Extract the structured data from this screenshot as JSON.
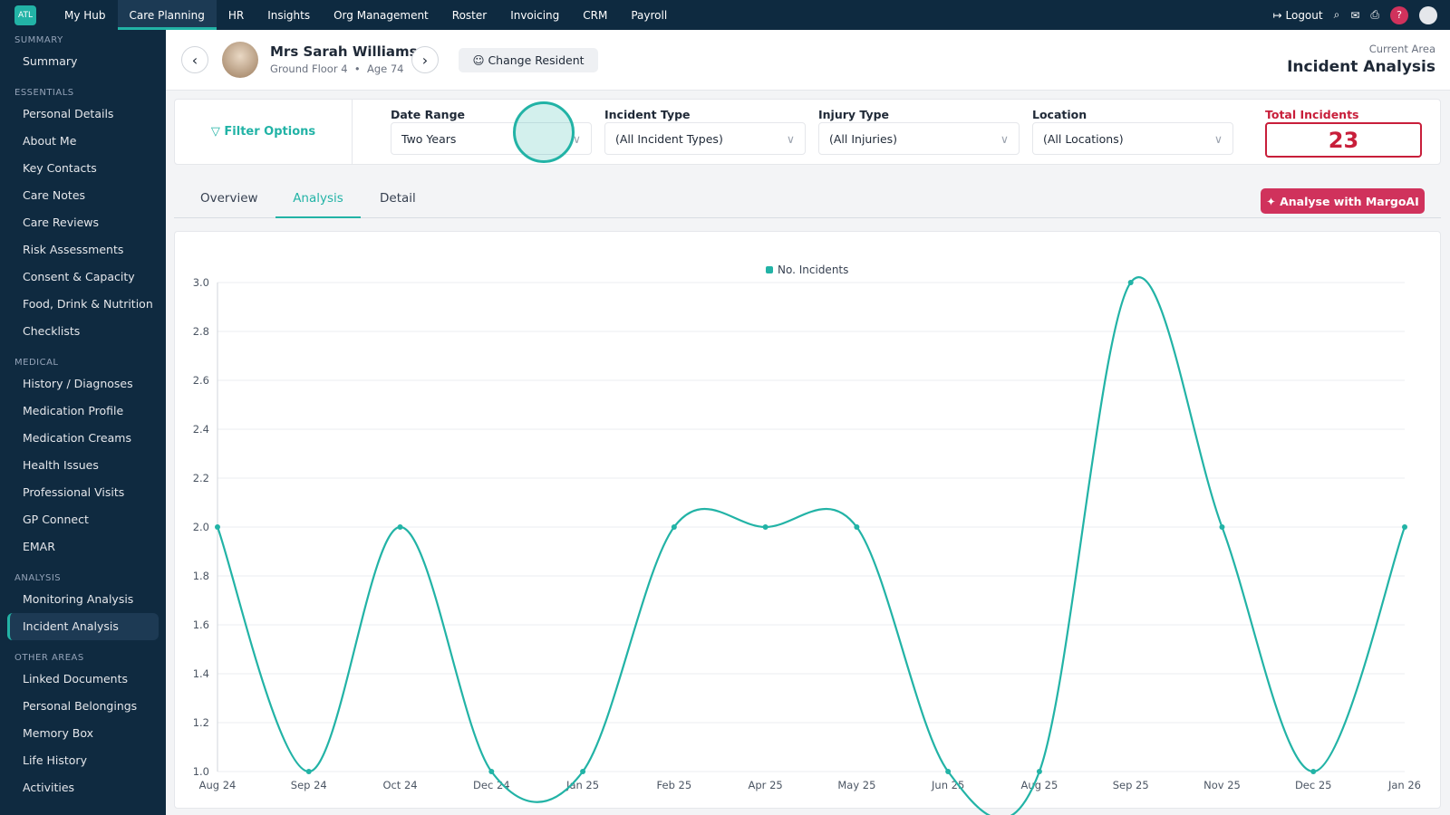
{
  "nav": {
    "logo": "ATL",
    "items": [
      "My Hub",
      "Care Planning",
      "HR",
      "Insights",
      "Org Management",
      "Roster",
      "Invoicing",
      "CRM",
      "Payroll"
    ],
    "logout": "Logout",
    "help": "?"
  },
  "sidebar": [
    {
      "title": "SUMMARY",
      "items": [
        "Summary"
      ]
    },
    {
      "title": "ESSENTIALS",
      "items": [
        "Personal Details",
        "About Me",
        "Key Contacts",
        "Care Notes",
        "Care Reviews",
        "Risk Assessments",
        "Consent & Capacity",
        "Food, Drink & Nutrition",
        "Checklists"
      ]
    },
    {
      "title": "MEDICAL",
      "items": [
        "History / Diagnoses",
        "Medication Profile",
        "Medication Creams",
        "Health Issues",
        "Professional Visits",
        "GP Connect",
        "EMAR"
      ]
    },
    {
      "title": "ANALYSIS",
      "items": [
        "Monitoring Analysis",
        "Incident Analysis"
      ]
    },
    {
      "title": "OTHER AREAS",
      "items": [
        "Linked Documents",
        "Personal Belongings",
        "Memory Box",
        "Life History",
        "Activities"
      ]
    }
  ],
  "resident": {
    "name": "Mrs Sarah Williams",
    "floor": "Ground Floor 4",
    "age": "Age 74",
    "change": "Change Resident"
  },
  "area": {
    "label": "Current Area",
    "title": "Incident Analysis"
  },
  "filters": {
    "title": "Filter Options",
    "fields": [
      {
        "label": "Date Range",
        "value": "Two Years"
      },
      {
        "label": "Incident Type",
        "value": "(All Incident Types)"
      },
      {
        "label": "Injury Type",
        "value": "(All Injuries)"
      },
      {
        "label": "Location",
        "value": "(All Locations)"
      }
    ],
    "total": {
      "label": "Total Incidents",
      "value": 23
    }
  },
  "tabs": [
    "Overview",
    "Analysis",
    "Detail"
  ],
  "ai_button": "Analyse with MargoAI",
  "chart_data": {
    "type": "line",
    "categories": [
      "Aug 24",
      "Sep 24",
      "Oct 24",
      "Dec 24",
      "Jan 25",
      "Feb 25",
      "Apr 25",
      "May 25",
      "Jun 25",
      "Aug 25",
      "Sep 25",
      "Nov 25",
      "Dec 25",
      "Jan 26"
    ],
    "series": [
      {
        "name": "No. Incidents",
        "color": "#22b3a6",
        "values": [
          2,
          1,
          2,
          1,
          1,
          2,
          2,
          2,
          1,
          1,
          3,
          2,
          1,
          2
        ]
      }
    ],
    "ylim": [
      1,
      3
    ],
    "yticks": [
      {
        "value": 1,
        "label": "1.0"
      },
      {
        "value": 1.2,
        "label": "1.2"
      },
      {
        "value": 1.4,
        "label": "1.4"
      },
      {
        "value": 1.6,
        "label": "1.6"
      },
      {
        "value": 1.8,
        "label": "1.8"
      },
      {
        "value": 2,
        "label": "2.0"
      },
      {
        "value": 2.2,
        "label": "2.2"
      },
      {
        "value": 2.4,
        "label": "2.4"
      },
      {
        "value": 2.6,
        "label": "2.6"
      },
      {
        "value": 2.8,
        "label": "2.8"
      },
      {
        "value": 3,
        "label": "3.0"
      }
    ],
    "grid": true,
    "smooth": true,
    "legend": "top"
  }
}
